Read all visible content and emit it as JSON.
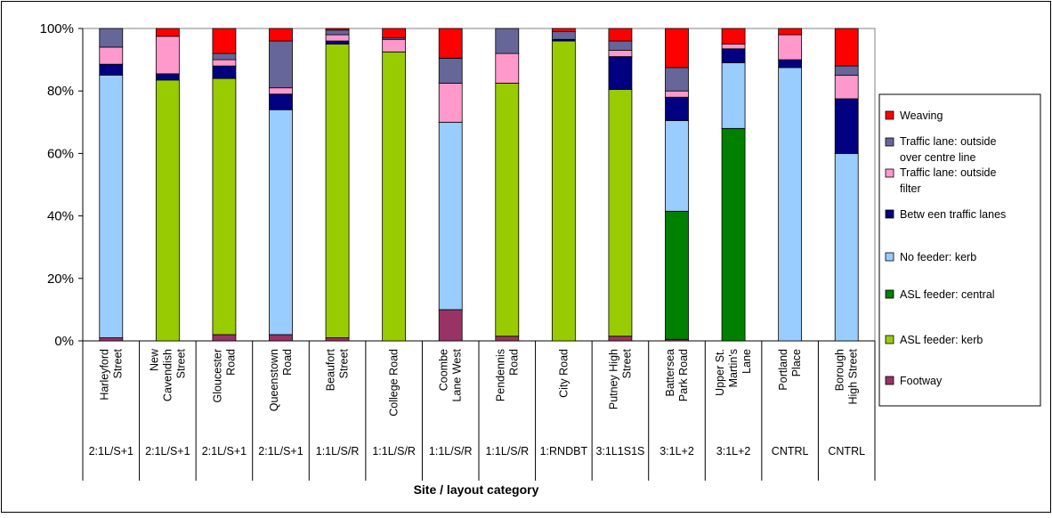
{
  "chart_data": {
    "type": "bar",
    "stacked": true,
    "normalized": true,
    "title": "",
    "xlabel": "Site / layout category",
    "ylabel": "",
    "ylim": [
      0,
      100
    ],
    "yticks": [
      "0%",
      "20%",
      "40%",
      "60%",
      "80%",
      "100%"
    ],
    "grid": false,
    "legend_position": "right",
    "categories": [
      [
        "Harleyford",
        "Street"
      ],
      [
        "New",
        "Cavendish",
        "Street"
      ],
      [
        "Gloucester",
        "Road"
      ],
      [
        "Queenstown",
        "Road"
      ],
      [
        "Beaufort",
        "Street"
      ],
      [
        "College Road"
      ],
      [
        "Coombe",
        "Lane West"
      ],
      [
        "Pendennis",
        "Road"
      ],
      [
        "City Road"
      ],
      [
        "Putney High",
        "Street"
      ],
      [
        "Battersea",
        "Park Road"
      ],
      [
        "Upper St.",
        "Martin's",
        "Lane"
      ],
      [
        "Portland",
        "Place"
      ],
      [
        "Borough",
        "High Street"
      ]
    ],
    "layout_codes": [
      "2:1L/S+1",
      "2:1L/S+1",
      "2:1L/S+1",
      "2:1L/S+1",
      "1:1L/S/R",
      "1:1L/S/R",
      "1:1L/S/R",
      "1:1L/S/R",
      "1:RNDBT",
      "3:1L1S1S",
      "3:1L+2",
      "3:1L+2",
      "CNTRL",
      "CNTRL"
    ],
    "series": [
      {
        "name": "Footway",
        "color": "#993366",
        "values": [
          1,
          0,
          2,
          2,
          1,
          0,
          10,
          1.5,
          0,
          1.5,
          0.5,
          0,
          0,
          0
        ]
      },
      {
        "name": "ASL feeder: kerb",
        "color": "#99CC00",
        "values": [
          0,
          83.5,
          82,
          0,
          94,
          92.5,
          0,
          81,
          96,
          79,
          0,
          0,
          0,
          0
        ]
      },
      {
        "name": "ASL feeder: central",
        "color": "#008000",
        "values": [
          0,
          0,
          0,
          0,
          0,
          0,
          0,
          0,
          0,
          0,
          41,
          68,
          0,
          0
        ]
      },
      {
        "name": "No feeder: kerb",
        "color": "#99CCFF",
        "values": [
          84.5,
          0,
          0,
          72,
          0,
          0,
          60,
          0,
          0,
          0,
          29,
          21,
          87.5,
          60
        ]
      },
      {
        "name": "Betw een traffic lanes",
        "color": "#000080",
        "values": [
          3.5,
          2,
          4,
          5,
          1,
          0,
          0,
          0,
          0.5,
          10.5,
          7.5,
          4.5,
          2.5,
          17.5
        ]
      },
      {
        "name": "Traffic lane: outside filter",
        "color": "#FF99CC",
        "values": [
          5.5,
          12,
          2,
          2,
          2,
          4,
          12.5,
          9.5,
          0,
          2,
          2,
          1.5,
          8,
          7.5
        ]
      },
      {
        "name": "Traffic lane: outside over centre line",
        "color": "#666699",
        "values": [
          6,
          0,
          2,
          15,
          1.5,
          0.5,
          8,
          8,
          2.5,
          3,
          7.5,
          0,
          0,
          3
        ]
      },
      {
        "name": "Weaving",
        "color": "#FF0000",
        "values": [
          0,
          2.5,
          8,
          4,
          0.5,
          3,
          9.5,
          0,
          1,
          4,
          12.5,
          5,
          2,
          12
        ]
      }
    ]
  }
}
